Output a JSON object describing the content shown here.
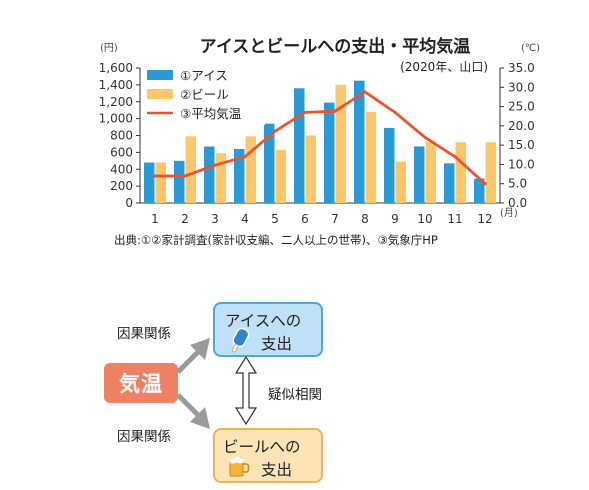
{
  "chart_data": {
    "type": "bar",
    "title": "アイスとビールへの支出・平均気温",
    "subtitle": "(2020年、山口)",
    "x": [
      1,
      2,
      3,
      4,
      5,
      6,
      7,
      8,
      9,
      10,
      11,
      12
    ],
    "x_unit": "(月)",
    "y_left_unit": "(円)",
    "y_right_unit": "(℃)",
    "ylim_left": [
      0,
      1600
    ],
    "ylim_right": [
      0,
      35
    ],
    "y_left_ticks": [
      "0",
      "200",
      "400",
      "600",
      "800",
      "1,000",
      "1,200",
      "1,400",
      "1,600"
    ],
    "y_right_ticks": [
      "0.0",
      "5.0",
      "10.0",
      "15.0",
      "20.0",
      "25.0",
      "30.0",
      "35.0"
    ],
    "series": [
      {
        "name": "①アイス",
        "type": "bar",
        "axis": "left",
        "color": "#2a9ad6",
        "values": [
          480,
          500,
          670,
          640,
          940,
          1360,
          1190,
          1450,
          890,
          670,
          470,
          290
        ]
      },
      {
        "name": "②ビール",
        "type": "bar",
        "axis": "left",
        "color": "#fbc66c",
        "values": [
          480,
          790,
          590,
          790,
          630,
          800,
          1400,
          1080,
          490,
          730,
          720,
          720
        ]
      },
      {
        "name": "③平均気温",
        "type": "line",
        "axis": "right",
        "color": "#e8552f",
        "values": [
          7.0,
          7.0,
          9.8,
          12.0,
          18.6,
          23.5,
          23.8,
          28.8,
          23.5,
          17.0,
          12.0,
          5.0
        ]
      }
    ],
    "legend_position": "top-left",
    "grid": false,
    "source": "出典:①②家計調査(家計収支編、二人以上の世帯)、③気象庁HP"
  },
  "diagram": {
    "temperature_label": "気温",
    "ice_box_line1": "アイスへの",
    "ice_box_line2": "支出",
    "beer_box_line1": "ビールへの",
    "beer_box_line2": "支出",
    "causal_label_top": "因果関係",
    "causal_label_bottom": "因果関係",
    "pseudo_correlation_label": "疑似相関",
    "colors": {
      "temperature": "#ee8064",
      "ice_box_fill": "#bfe0f6",
      "ice_box_border": "#4aa8de",
      "beer_box_fill": "#fde3b5",
      "beer_box_border": "#f0b15a",
      "arrow": "#9a9a9a"
    },
    "icons": [
      "ice-pop-icon",
      "beer-mug-icon"
    ]
  }
}
